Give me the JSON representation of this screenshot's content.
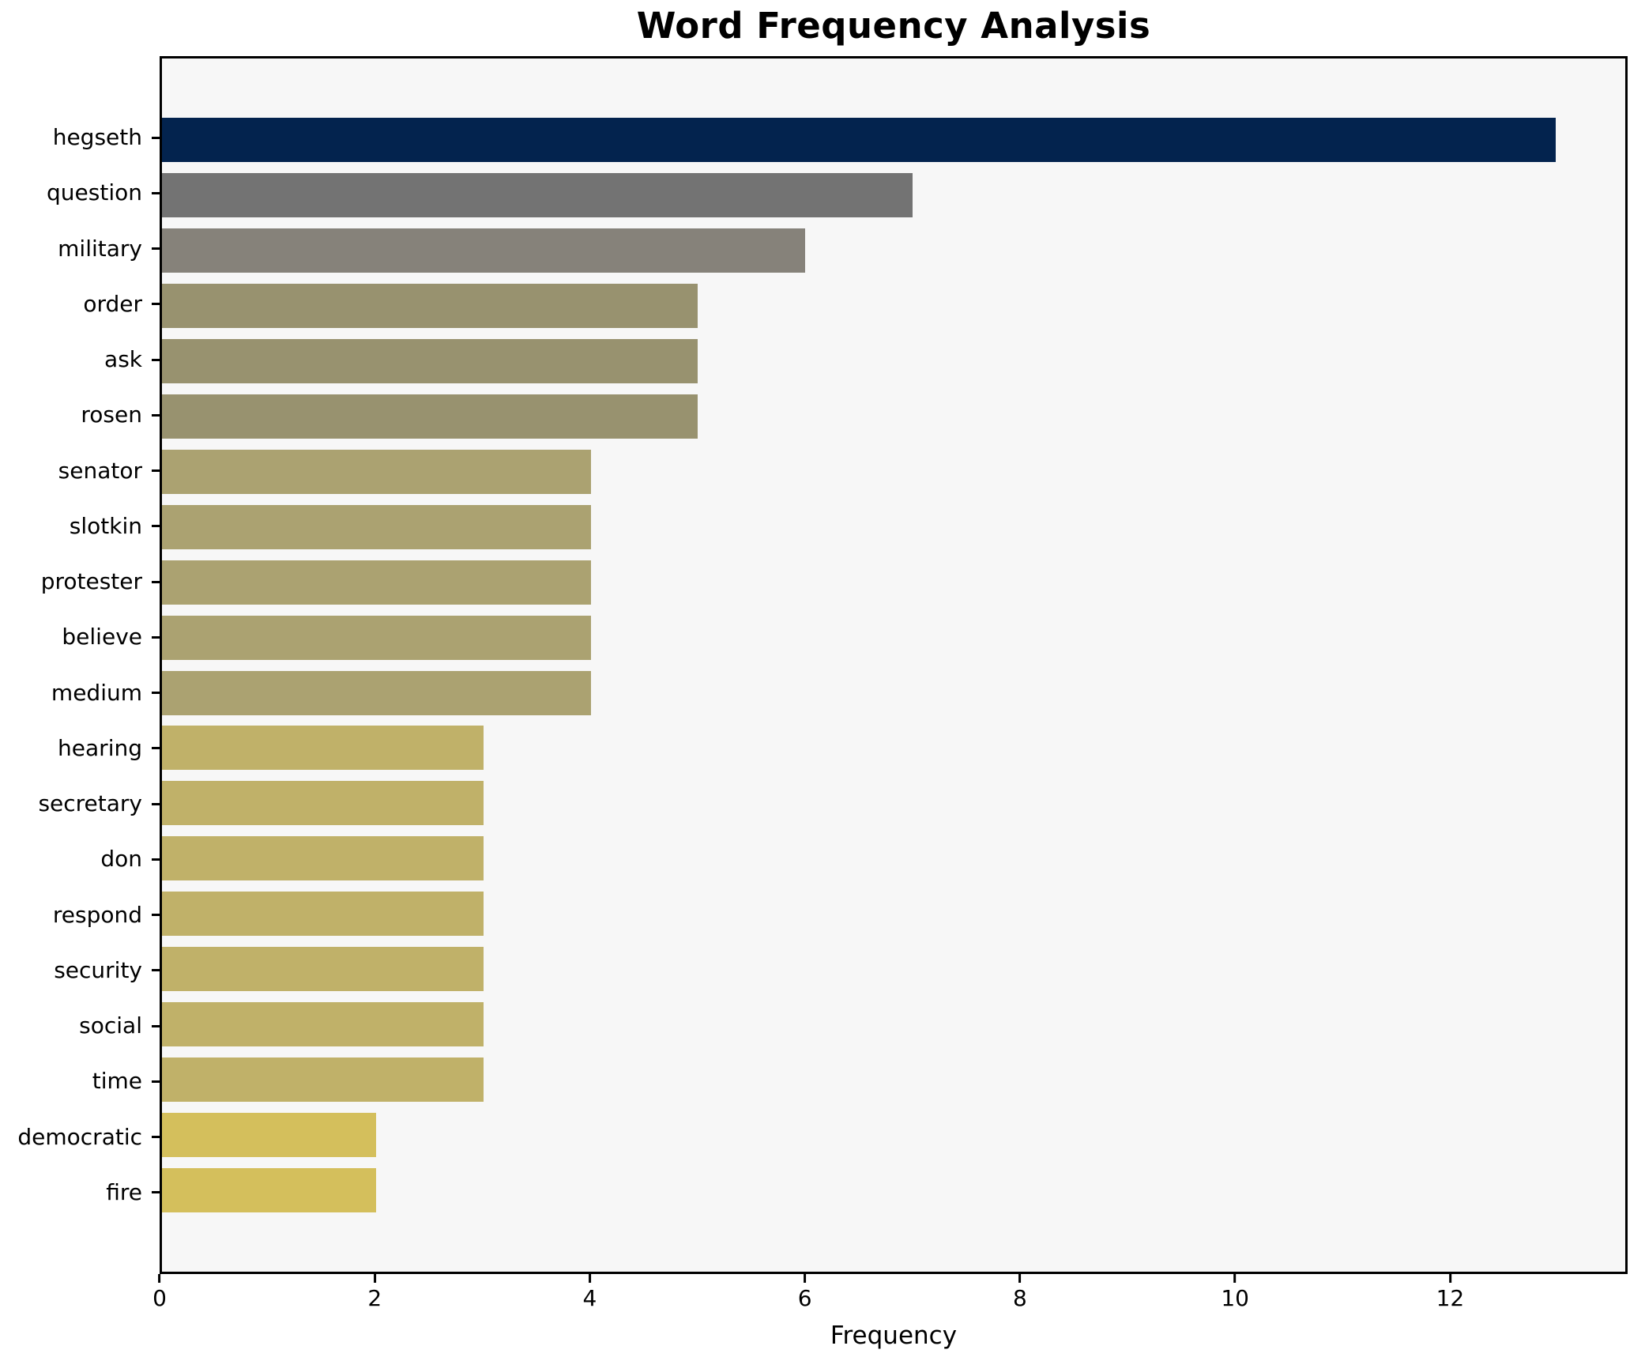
{
  "title": "Word Frequency Analysis",
  "xlabel": "Frequency",
  "colors": {
    "figure_background": "#ffffff",
    "plot_background": "#f7f7f7",
    "spine": "#000000",
    "text": "#000000"
  },
  "chart_data": {
    "type": "bar",
    "orientation": "horizontal",
    "title": "Word Frequency Analysis",
    "xlabel": "Frequency",
    "ylabel": "",
    "grid": false,
    "legend": null,
    "xlim": [
      0,
      13.65
    ],
    "xticks": [
      0,
      2,
      4,
      6,
      8,
      10,
      12
    ],
    "categories": [
      "hegseth",
      "question",
      "military",
      "order",
      "ask",
      "rosen",
      "senator",
      "slotkin",
      "protester",
      "believe",
      "medium",
      "hearing",
      "secretary",
      "don",
      "respond",
      "security",
      "social",
      "time",
      "democratic",
      "fire"
    ],
    "values": [
      13,
      7,
      6,
      5,
      5,
      5,
      4,
      4,
      4,
      4,
      4,
      3,
      3,
      3,
      3,
      3,
      3,
      3,
      2,
      2
    ],
    "bar_colors": [
      "#03234e",
      "#737373",
      "#86827a",
      "#98926f",
      "#98926f",
      "#98926f",
      "#aba271",
      "#aba271",
      "#aba271",
      "#aba271",
      "#aba271",
      "#c0b169",
      "#c0b169",
      "#c0b169",
      "#c0b169",
      "#c0b169",
      "#c0b169",
      "#c0b169",
      "#d4bf5c",
      "#d4bf5c"
    ],
    "colormap_hint": "cividis (dark navy for high frequency to gold for low frequency)"
  }
}
